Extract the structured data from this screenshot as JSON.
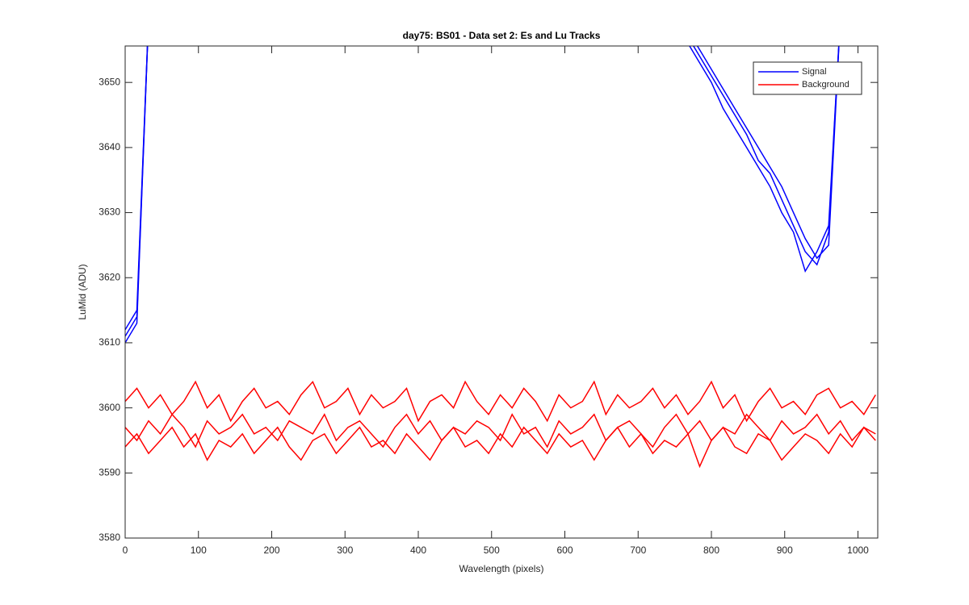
{
  "chart_data": {
    "type": "line",
    "title": "day75: BS01 - Data set 2: Es and Lu Tracks",
    "xlabel": "Wavelength (pixels)",
    "ylabel": "LuMid (ADU)",
    "legend": "upper right",
    "x": [
      0,
      16,
      32,
      48,
      64,
      80,
      96,
      112,
      128,
      144,
      160,
      176,
      192,
      208,
      224,
      240,
      256,
      272,
      288,
      304,
      320,
      336,
      352,
      368,
      384,
      400,
      416,
      432,
      448,
      464,
      480,
      496,
      512,
      528,
      544,
      560,
      576,
      592,
      608,
      624,
      640,
      656,
      672,
      688,
      704,
      720,
      736,
      752,
      768,
      784,
      800,
      816,
      832,
      848,
      864,
      880,
      896,
      912,
      928,
      944,
      960,
      976,
      992,
      1008,
      1024
    ],
    "xlim": [
      0,
      1027
    ],
    "ylim": [
      3580,
      3655.6
    ],
    "xticks": [
      0,
      100,
      200,
      300,
      400,
      500,
      600,
      700,
      800,
      900,
      1000
    ],
    "yticks": [
      3580,
      3590,
      3600,
      3610,
      3620,
      3630,
      3640,
      3650
    ],
    "series": [
      {
        "name": "Signal",
        "color": "#0000ff",
        "values": [
          3611,
          3614,
          3660,
          null,
          null,
          null,
          null,
          null,
          null,
          null,
          null,
          null,
          null,
          null,
          null,
          null,
          null,
          null,
          null,
          null,
          null,
          null,
          null,
          null,
          null,
          null,
          null,
          null,
          null,
          null,
          null,
          null,
          null,
          null,
          null,
          null,
          null,
          null,
          null,
          null,
          null,
          null,
          null,
          null,
          null,
          null,
          null,
          null,
          3657,
          3654,
          3651,
          3648,
          3645,
          3642,
          3638,
          3636,
          3632,
          3628,
          3624,
          3622,
          3627,
          3660,
          null,
          null,
          null
        ]
      },
      {
        "color": "#0000ff",
        "values": [
          3610,
          3613,
          3660,
          null,
          null,
          null,
          null,
          null,
          null,
          null,
          null,
          null,
          null,
          null,
          null,
          null,
          null,
          null,
          null,
          null,
          null,
          null,
          null,
          null,
          null,
          null,
          null,
          null,
          null,
          null,
          null,
          null,
          null,
          null,
          null,
          null,
          null,
          null,
          null,
          null,
          null,
          null,
          null,
          null,
          null,
          null,
          null,
          null,
          3658,
          3655,
          3652,
          3649,
          3646,
          3643,
          3640,
          3637,
          3634,
          3630,
          3626,
          3623,
          3625,
          3660,
          null,
          null,
          null
        ]
      },
      {
        "color": "#0000ff",
        "values": [
          3612,
          3615,
          3660,
          null,
          null,
          null,
          null,
          null,
          null,
          null,
          null,
          null,
          null,
          null,
          null,
          null,
          null,
          null,
          null,
          null,
          null,
          null,
          null,
          null,
          null,
          null,
          null,
          null,
          null,
          null,
          null,
          null,
          null,
          null,
          null,
          null,
          null,
          null,
          null,
          null,
          null,
          null,
          null,
          null,
          null,
          null,
          null,
          null,
          3656,
          3653,
          3650,
          3646,
          3643,
          3640,
          3637,
          3634,
          3630,
          3627,
          3621,
          3624,
          3628,
          3660,
          null,
          null,
          null
        ]
      },
      {
        "name": "Background",
        "color": "#ff0000",
        "values": [
          3601,
          3603,
          3600,
          3602,
          3599,
          3601,
          3604,
          3600,
          3602,
          3598,
          3601,
          3603,
          3600,
          3601,
          3599,
          3602,
          3604,
          3600,
          3601,
          3603,
          3599,
          3602,
          3600,
          3601,
          3603,
          3598,
          3601,
          3602,
          3600,
          3604,
          3601,
          3599,
          3602,
          3600,
          3603,
          3601,
          3598,
          3602,
          3600,
          3601,
          3604,
          3599,
          3602,
          3600,
          3601,
          3603,
          3600,
          3602,
          3599,
          3601,
          3604,
          3600,
          3602,
          3598,
          3601,
          3603,
          3600,
          3601,
          3599,
          3602,
          3603,
          3600,
          3601,
          3599,
          3602
        ]
      },
      {
        "color": "#ff0000",
        "values": [
          3597,
          3595,
          3598,
          3596,
          3599,
          3597,
          3594,
          3598,
          3596,
          3597,
          3599,
          3596,
          3597,
          3595,
          3598,
          3597,
          3596,
          3599,
          3595,
          3597,
          3598,
          3596,
          3594,
          3597,
          3599,
          3596,
          3598,
          3595,
          3597,
          3596,
          3598,
          3597,
          3595,
          3599,
          3596,
          3597,
          3594,
          3598,
          3596,
          3597,
          3599,
          3595,
          3597,
          3598,
          3596,
          3594,
          3597,
          3599,
          3596,
          3598,
          3595,
          3597,
          3596,
          3599,
          3597,
          3595,
          3598,
          3596,
          3597,
          3599,
          3596,
          3598,
          3595,
          3597,
          3596
        ]
      },
      {
        "color": "#ff0000",
        "values": [
          3594,
          3596,
          3593,
          3595,
          3597,
          3594,
          3596,
          3592,
          3595,
          3594,
          3596,
          3593,
          3595,
          3597,
          3594,
          3592,
          3595,
          3596,
          3593,
          3595,
          3597,
          3594,
          3595,
          3593,
          3596,
          3594,
          3592,
          3595,
          3597,
          3594,
          3595,
          3593,
          3596,
          3594,
          3597,
          3595,
          3593,
          3596,
          3594,
          3595,
          3592,
          3595,
          3597,
          3594,
          3596,
          3593,
          3595,
          3594,
          3596,
          3591,
          3595,
          3597,
          3594,
          3593,
          3596,
          3595,
          3592,
          3594,
          3596,
          3595,
          3593,
          3596,
          3594,
          3597,
          3595
        ]
      }
    ]
  }
}
